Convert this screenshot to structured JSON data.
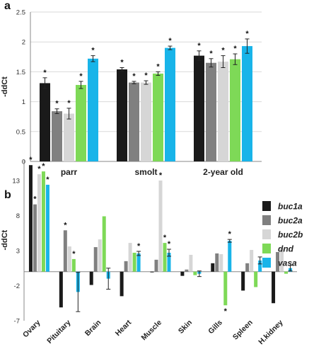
{
  "colors": {
    "buc1a": "#1a1a1a",
    "buc2a": "#808080",
    "buc2b": "#d6d6d6",
    "dnd": "#7ed957",
    "vasa": "#18b4e9"
  },
  "legend": {
    "entries": [
      {
        "key": "buc1a",
        "label": "buc1a"
      },
      {
        "key": "buc2a",
        "label": "buc2a"
      },
      {
        "key": "buc2b",
        "label": "buc2b"
      },
      {
        "key": "dnd",
        "label": "dnd"
      },
      {
        "key": "vasa",
        "label": "vasa"
      }
    ],
    "placement": "right"
  },
  "chart_data": [
    {
      "panel_label": "a",
      "type": "bar",
      "ylabel": "-ddCt",
      "ylim": [
        0,
        2.5
      ],
      "yticks": [
        0,
        0.5,
        1,
        1.5,
        2,
        2.5
      ],
      "ytick_labels": [
        "0",
        "0.5",
        "1",
        "1.5",
        "2",
        "2.5"
      ],
      "grid": true,
      "categories": [
        "parr",
        "smolt",
        "2-year old"
      ],
      "series": [
        {
          "name": "buc1a",
          "values": [
            1.31,
            1.54,
            1.77
          ],
          "errors": [
            0.09,
            0.03,
            0.08
          ],
          "significant": [
            true,
            true,
            true
          ]
        },
        {
          "name": "buc2a",
          "values": [
            0.84,
            1.32,
            1.65
          ],
          "errors": [
            0.04,
            0.02,
            0.07
          ],
          "significant": [
            true,
            true,
            true
          ]
        },
        {
          "name": "buc2b",
          "values": [
            0.8,
            1.32,
            1.67
          ],
          "errors": [
            0.09,
            0.03,
            0.1
          ],
          "significant": [
            true,
            true,
            true
          ]
        },
        {
          "name": "dnd",
          "values": [
            1.28,
            1.47,
            1.71
          ],
          "errors": [
            0.06,
            0.03,
            0.09
          ],
          "significant": [
            true,
            true,
            true
          ]
        },
        {
          "name": "vasa",
          "values": [
            1.72,
            1.9,
            1.93
          ],
          "errors": [
            0.05,
            0.03,
            0.12
          ],
          "significant": [
            true,
            true,
            true
          ]
        }
      ]
    },
    {
      "panel_label": "b",
      "type": "bar",
      "ylabel": "-ddCt",
      "ylim": [
        -7,
        16
      ],
      "yticks": [
        -7,
        -2,
        3,
        8,
        13
      ],
      "ytick_labels": [
        "-7",
        "-2",
        "3",
        "8",
        "13"
      ],
      "grid": false,
      "categories": [
        "Ovary",
        "Pituitary",
        "Brain",
        "Heart",
        "Muscle",
        "Skin",
        "Gills",
        "Spleen",
        "H.kidney"
      ],
      "series": [
        {
          "name": "buc1a",
          "values": [
            15.2,
            -5.1,
            -1.9,
            -3.5,
            -0.1,
            -0.6,
            1.2,
            -2.7,
            -4.5
          ],
          "errors": [
            0,
            0,
            0,
            0,
            0,
            0,
            0,
            0,
            0
          ],
          "significant": [
            true,
            false,
            false,
            false,
            false,
            false,
            false,
            false,
            false
          ]
        },
        {
          "name": "buc2a",
          "values": [
            9.6,
            5.9,
            3.5,
            1.5,
            1.7,
            0.3,
            2.6,
            1.2,
            2.8
          ],
          "errors": [
            0,
            0,
            0,
            0,
            0,
            0,
            0,
            0,
            0
          ],
          "significant": [
            true,
            true,
            false,
            false,
            false,
            false,
            false,
            false,
            false
          ]
        },
        {
          "name": "buc2b",
          "values": [
            13.9,
            3.6,
            4.6,
            4.1,
            13.0,
            2.4,
            2.5,
            3.1,
            3.3
          ],
          "errors": [
            0,
            0,
            0,
            0,
            0,
            0,
            0,
            0,
            0
          ],
          "significant": [
            true,
            false,
            false,
            false,
            true,
            false,
            false,
            false,
            false
          ]
        },
        {
          "name": "dnd",
          "values": [
            14.3,
            1.8,
            7.9,
            2.7,
            4.1,
            -0.5,
            -4.8,
            -2.2,
            -0.3
          ],
          "errors": [
            0,
            0,
            0,
            0,
            0,
            0,
            0,
            0,
            0
          ],
          "significant": [
            true,
            true,
            false,
            false,
            true,
            false,
            true,
            false,
            false
          ]
        },
        {
          "name": "vasa",
          "values": [
            12.4,
            -2.9,
            -1.0,
            2.6,
            2.7,
            -0.3,
            4.4,
            1.6,
            0.5
          ],
          "errors": [
            0,
            2.8,
            1.5,
            0.3,
            0.5,
            0.4,
            0.2,
            0.5,
            0.4
          ],
          "significant": [
            true,
            false,
            false,
            true,
            true,
            false,
            true,
            false,
            false
          ]
        }
      ]
    }
  ]
}
